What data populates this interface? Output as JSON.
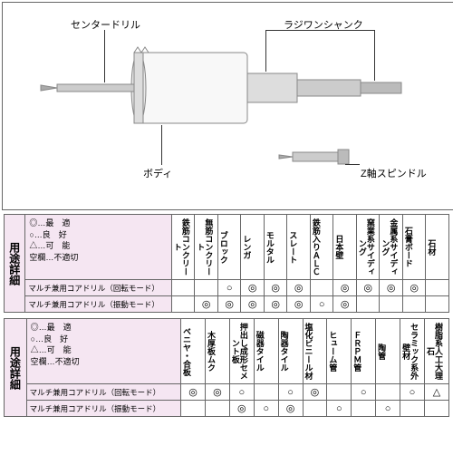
{
  "diagram": {
    "labels": {
      "center_drill": "センタードリル",
      "body": "ボディ",
      "radial_shank": "ラジワンシャンク",
      "z_spindle": "Z軸スピンドル"
    },
    "colors": {
      "border": "#666666",
      "leader": "#333333",
      "product_body": "#f5f5f5",
      "product_shadow": "#888888"
    }
  },
  "legend": {
    "best": "◎…最　適",
    "good": "○…良　好",
    "ok": "△…可　能",
    "na": "空欄…不適切"
  },
  "side_header": "用途詳細",
  "symbols": {
    "dbl": "◎",
    "sgl": "○",
    "tri": "△"
  },
  "table1": {
    "materials": [
      "鉄筋コンクリート",
      "無筋コンクリート",
      "ブロック",
      "レンガ",
      "モルタル",
      "スレート",
      "鉄筋入りＡＬＣ",
      "日本壁",
      "窯業系サイディング",
      "金属系サイディング",
      "石膏ボード",
      "石材"
    ],
    "rows": [
      {
        "label": "マルチ兼用コアドリル（回転モード）",
        "cells": [
          "",
          "",
          "sgl",
          "dbl",
          "dbl",
          "dbl",
          "",
          "dbl",
          "dbl",
          "dbl",
          "dbl",
          ""
        ]
      },
      {
        "label": "マルチ兼用コアドリル（振動モード）",
        "cells": [
          "",
          "dbl",
          "dbl",
          "dbl",
          "dbl",
          "dbl",
          "sgl",
          "dbl",
          "",
          "",
          "",
          ""
        ]
      }
    ]
  },
  "table2": {
    "materials": [
      "ベニヤ・合板",
      "木厚板ムク",
      "押出し成形セメント板",
      "磁器タイル",
      "陶器タイル",
      "塩化ビニール材",
      "ヒューム管",
      "ＦＲＰＭ管",
      "陶管",
      "セラミック系外壁材",
      "樹脂系人工大理石"
    ],
    "rows": [
      {
        "label": "マルチ兼用コアドリル（回転モード）",
        "cells": [
          "dbl",
          "dbl",
          "sgl",
          "",
          "sgl",
          "dbl",
          "",
          "sgl",
          "",
          "sgl",
          "tri"
        ]
      },
      {
        "label": "マルチ兼用コアドリル（振動モード）",
        "cells": [
          "",
          "",
          "dbl",
          "sgl",
          "dbl",
          "",
          "sgl",
          "",
          "sgl",
          "",
          ""
        ]
      }
    ]
  },
  "style": {
    "header_bg": "#f5e6f2",
    "border_color": "#666666",
    "font_small": 9,
    "font_label": 8.5,
    "font_symbol": 11
  }
}
